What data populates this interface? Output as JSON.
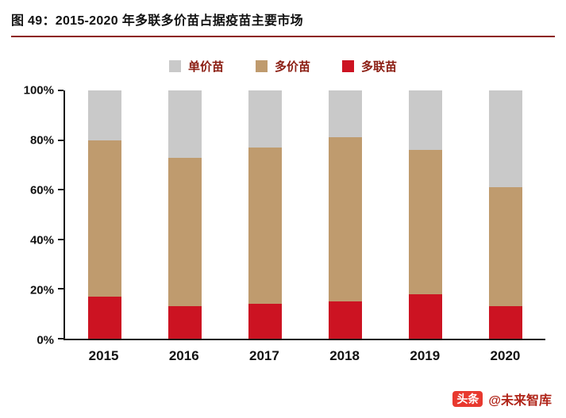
{
  "header": {
    "title": "图 49：2015-2020 年多联多价苗占据疫苗主要市场"
  },
  "footer": {
    "badge": "头条",
    "handle": "@未来智库"
  },
  "colors": {
    "accent": "#8c1f14",
    "monovalent_gray": "#c9c9c9",
    "multivalent_tan": "#bf9b6e",
    "combination_red": "#cc1322"
  },
  "chart_data": {
    "type": "bar",
    "stacked": true,
    "title": "图 49：2015-2020 年多联多价苗占据疫苗主要市场",
    "categories": [
      "2015",
      "2016",
      "2017",
      "2018",
      "2019",
      "2020"
    ],
    "series": [
      {
        "name": "多联苗",
        "color": "#cc1322",
        "values": [
          17,
          13,
          14,
          15,
          18,
          13
        ]
      },
      {
        "name": "多价苗",
        "color": "#bf9b6e",
        "values": [
          63,
          60,
          63,
          66,
          58,
          48
        ]
      },
      {
        "name": "单价苗",
        "color": "#c9c9c9",
        "values": [
          20,
          27,
          23,
          19,
          24,
          39
        ]
      }
    ],
    "legend": [
      {
        "label": "单价苗",
        "color": "#c9c9c9"
      },
      {
        "label": "多价苗",
        "color": "#bf9b6e"
      },
      {
        "label": "多联苗",
        "color": "#cc1322"
      }
    ],
    "legend_position": "top",
    "xlabel": "",
    "ylabel": "",
    "ylim": [
      0,
      100
    ],
    "yticks": [
      "100%",
      "80%",
      "60%",
      "40%",
      "20%",
      "0%"
    ],
    "grid": false
  }
}
